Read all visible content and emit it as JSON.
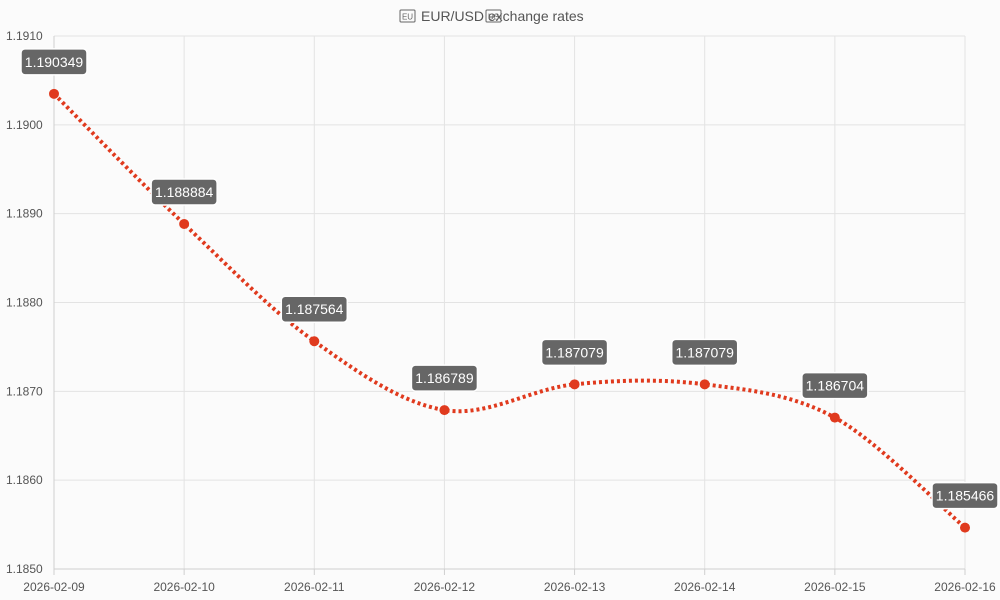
{
  "chart_data": {
    "type": "line",
    "title": "EUR/USD exchange rates",
    "title_icons": [
      "eu-flag-icon",
      "us-flag-icon"
    ],
    "xlabel": "",
    "ylabel": "",
    "categories": [
      "2026-02-09",
      "2026-02-10",
      "2026-02-11",
      "2026-02-12",
      "2026-02-13",
      "2026-02-14",
      "2026-02-15",
      "2026-02-16"
    ],
    "series": [
      {
        "values": [
          1.190349,
          1.188884,
          1.187564,
          1.186789,
          1.187079,
          1.187079,
          1.186704,
          1.185466
        ],
        "labels": [
          "1.190349",
          "1.188884",
          "1.187564",
          "1.186789",
          "1.187079",
          "1.187079",
          "1.186704",
          "1.185466"
        ],
        "color": "#e03a1e",
        "line_style": "dotted",
        "curve": "smooth"
      }
    ],
    "ylim": [
      1.185,
      1.191
    ],
    "yticks": [
      "1.1850",
      "1.1860",
      "1.1870",
      "1.1880",
      "1.1890",
      "1.1900",
      "1.1910"
    ],
    "grid": true,
    "legend": "none",
    "label_box_color": "#666666",
    "label_text_color": "#ffffff"
  }
}
